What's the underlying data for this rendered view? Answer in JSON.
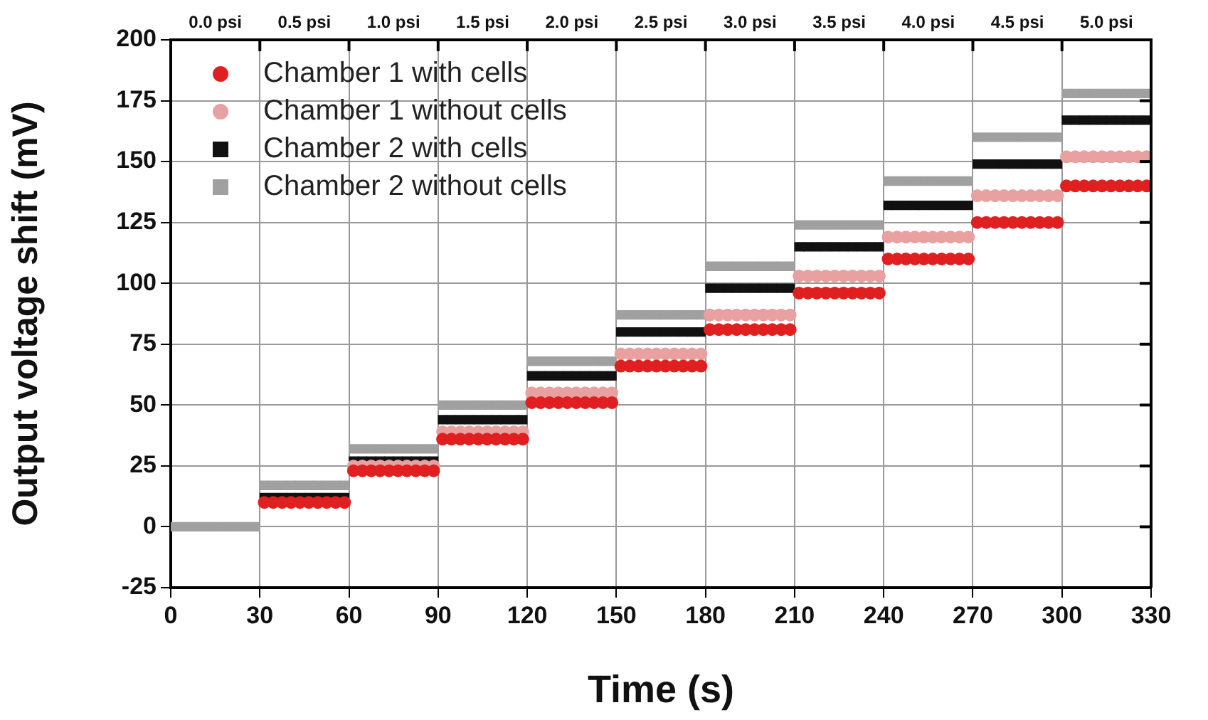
{
  "chart_data": {
    "type": "scatter",
    "xlabel": "Time (s)",
    "ylabel": "Output voltage shift (mV)",
    "xlim": [
      0,
      330
    ],
    "xticks": [
      0,
      30,
      60,
      90,
      120,
      150,
      180,
      210,
      240,
      270,
      300,
      330
    ],
    "ylim": [
      -25,
      200
    ],
    "yticks": [
      -25,
      0,
      25,
      50,
      75,
      100,
      125,
      150,
      175,
      200
    ],
    "annotations": [
      "0.0 psi",
      "0.5 psi",
      "1.0 psi",
      "1.5 psi",
      "2.0 psi",
      "2.5 psi",
      "3.0 psi",
      "3.5 psi",
      "4.0 psi",
      "4.5 psi",
      "5.0 psi"
    ],
    "grid": true,
    "legend": "top left",
    "x": [
      1.5,
      4.5,
      7.5,
      10.5,
      13.5,
      16.5,
      19.5,
      22.5,
      25.5,
      28.5,
      31.5,
      34.5,
      37.5,
      40.5,
      43.5,
      46.5,
      49.5,
      52.5,
      55.5,
      58.5,
      61.5,
      64.5,
      67.5,
      70.5,
      73.5,
      76.5,
      79.5,
      82.5,
      85.5,
      88.5,
      91.5,
      94.5,
      97.5,
      100.5,
      103.5,
      106.5,
      109.5,
      112.5,
      115.5,
      118.5,
      121.5,
      124.5,
      127.5,
      130.5,
      133.5,
      136.5,
      139.5,
      142.5,
      145.5,
      148.5,
      151.5,
      154.5,
      157.5,
      160.5,
      163.5,
      166.5,
      169.5,
      172.5,
      175.5,
      178.5,
      181.5,
      184.5,
      187.5,
      190.5,
      193.5,
      196.5,
      199.5,
      202.5,
      205.5,
      208.5,
      211.5,
      214.5,
      217.5,
      220.5,
      223.5,
      226.5,
      229.5,
      232.5,
      235.5,
      238.5,
      241.5,
      244.5,
      247.5,
      250.5,
      253.5,
      256.5,
      259.5,
      262.5,
      265.5,
      268.5,
      271.5,
      274.5,
      277.5,
      280.5,
      283.5,
      286.5,
      289.5,
      292.5,
      295.5,
      298.5,
      301.5,
      304.5,
      307.5,
      310.5,
      313.5,
      316.5,
      319.5,
      322.5,
      325.5,
      328.5
    ],
    "series": [
      {
        "name": "Chamber 1 with cells",
        "color": "#e02020",
        "marker": "circle",
        "values": [
          null,
          null,
          null,
          null,
          null,
          null,
          null,
          null,
          null,
          null,
          10,
          10,
          10,
          10,
          10,
          10,
          10,
          10,
          10,
          10,
          23,
          23,
          23,
          23,
          23,
          23,
          23,
          23,
          23,
          23,
          36,
          36,
          36,
          36,
          36,
          36,
          36,
          36,
          36,
          36,
          51,
          51,
          51,
          51,
          51,
          51,
          51,
          51,
          51,
          51,
          66,
          66,
          66,
          66,
          66,
          66,
          66,
          66,
          66,
          66,
          81,
          81,
          81,
          81,
          81,
          81,
          81,
          81,
          81,
          81,
          96,
          96,
          96,
          96,
          96,
          96,
          96,
          96,
          96,
          96,
          110,
          110,
          110,
          110,
          110,
          110,
          110,
          110,
          110,
          110,
          125,
          125,
          125,
          125,
          125,
          125,
          125,
          125,
          125,
          125,
          140,
          140,
          140,
          140,
          140,
          140,
          140,
          140,
          140,
          140
        ]
      },
      {
        "name": "Chamber 1 without cells",
        "color": "#e8a0a0",
        "marker": "circle",
        "values": [
          null,
          null,
          null,
          null,
          null,
          null,
          null,
          null,
          null,
          null,
          null,
          null,
          null,
          null,
          null,
          null,
          null,
          null,
          null,
          null,
          25,
          25,
          25,
          25,
          25,
          25,
          25,
          25,
          25,
          25,
          39,
          39,
          39,
          39,
          39,
          39,
          39,
          39,
          39,
          39,
          55,
          55,
          55,
          55,
          55,
          55,
          55,
          55,
          55,
          55,
          71,
          71,
          71,
          71,
          71,
          71,
          71,
          71,
          71,
          71,
          87,
          87,
          87,
          87,
          87,
          87,
          87,
          87,
          87,
          87,
          103,
          103,
          103,
          103,
          103,
          103,
          103,
          103,
          103,
          103,
          119,
          119,
          119,
          119,
          119,
          119,
          119,
          119,
          119,
          119,
          136,
          136,
          136,
          136,
          136,
          136,
          136,
          136,
          136,
          136,
          152,
          152,
          152,
          152,
          152,
          152,
          152,
          152,
          152,
          152
        ]
      },
      {
        "name": "Chamber 2 with cells",
        "color": "#111111",
        "marker": "square",
        "values": [
          null,
          null,
          null,
          null,
          null,
          null,
          null,
          null,
          null,
          null,
          12,
          12,
          12,
          12,
          12,
          12,
          12,
          12,
          12,
          12,
          27,
          27,
          27,
          27,
          27,
          27,
          27,
          27,
          27,
          27,
          44,
          44,
          44,
          44,
          44,
          44,
          44,
          44,
          44,
          44,
          62,
          62,
          62,
          62,
          62,
          62,
          62,
          62,
          62,
          62,
          80,
          80,
          80,
          80,
          80,
          80,
          80,
          80,
          80,
          80,
          98,
          98,
          98,
          98,
          98,
          98,
          98,
          98,
          98,
          98,
          115,
          115,
          115,
          115,
          115,
          115,
          115,
          115,
          115,
          115,
          132,
          132,
          132,
          132,
          132,
          132,
          132,
          132,
          132,
          132,
          149,
          149,
          149,
          149,
          149,
          149,
          149,
          149,
          149,
          149,
          167,
          167,
          167,
          167,
          167,
          167,
          167,
          167,
          167,
          167
        ]
      },
      {
        "name": "Chamber 2 without cells",
        "color": "#a0a0a0",
        "marker": "square",
        "values": [
          0,
          0,
          0,
          0,
          0,
          0,
          0,
          0,
          0,
          0,
          17,
          17,
          17,
          17,
          17,
          17,
          17,
          17,
          17,
          17,
          32,
          32,
          32,
          32,
          32,
          32,
          32,
          32,
          32,
          32,
          50,
          50,
          50,
          50,
          50,
          50,
          50,
          50,
          50,
          50,
          68,
          68,
          68,
          68,
          68,
          68,
          68,
          68,
          68,
          68,
          87,
          87,
          87,
          87,
          87,
          87,
          87,
          87,
          87,
          87,
          107,
          107,
          107,
          107,
          107,
          107,
          107,
          107,
          107,
          107,
          124,
          124,
          124,
          124,
          124,
          124,
          124,
          124,
          124,
          124,
          142,
          142,
          142,
          142,
          142,
          142,
          142,
          142,
          142,
          142,
          160,
          160,
          160,
          160,
          160,
          160,
          160,
          160,
          160,
          160,
          178,
          178,
          178,
          178,
          178,
          178,
          178,
          178,
          178,
          178
        ]
      }
    ]
  }
}
